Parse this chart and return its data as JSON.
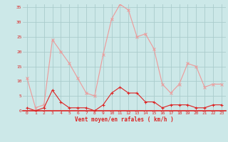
{
  "hours": [
    0,
    1,
    2,
    3,
    4,
    5,
    6,
    7,
    8,
    9,
    10,
    11,
    12,
    13,
    14,
    15,
    16,
    17,
    18,
    19,
    20,
    21,
    22,
    23
  ],
  "wind_avg": [
    1,
    0,
    1,
    7,
    3,
    1,
    1,
    1,
    0,
    2,
    6,
    8,
    6,
    6,
    3,
    3,
    1,
    2,
    2,
    2,
    1,
    1,
    2,
    2
  ],
  "wind_gust": [
    11,
    1,
    2,
    24,
    20,
    16,
    11,
    6,
    5,
    19,
    31,
    36,
    34,
    25,
    26,
    21,
    9,
    6,
    9,
    16,
    15,
    8,
    9,
    9
  ],
  "bg_color": "#cce8e8",
  "grid_color": "#aacccc",
  "line_color_avg": "#dd2222",
  "line_color_gust": "#ee9999",
  "xlabel": "Vent moyen/en rafales ( km/h )",
  "yticks": [
    0,
    5,
    10,
    15,
    20,
    25,
    30,
    35
  ],
  "ylim": [
    0,
    36
  ],
  "xlim": [
    -0.5,
    23.5
  ]
}
